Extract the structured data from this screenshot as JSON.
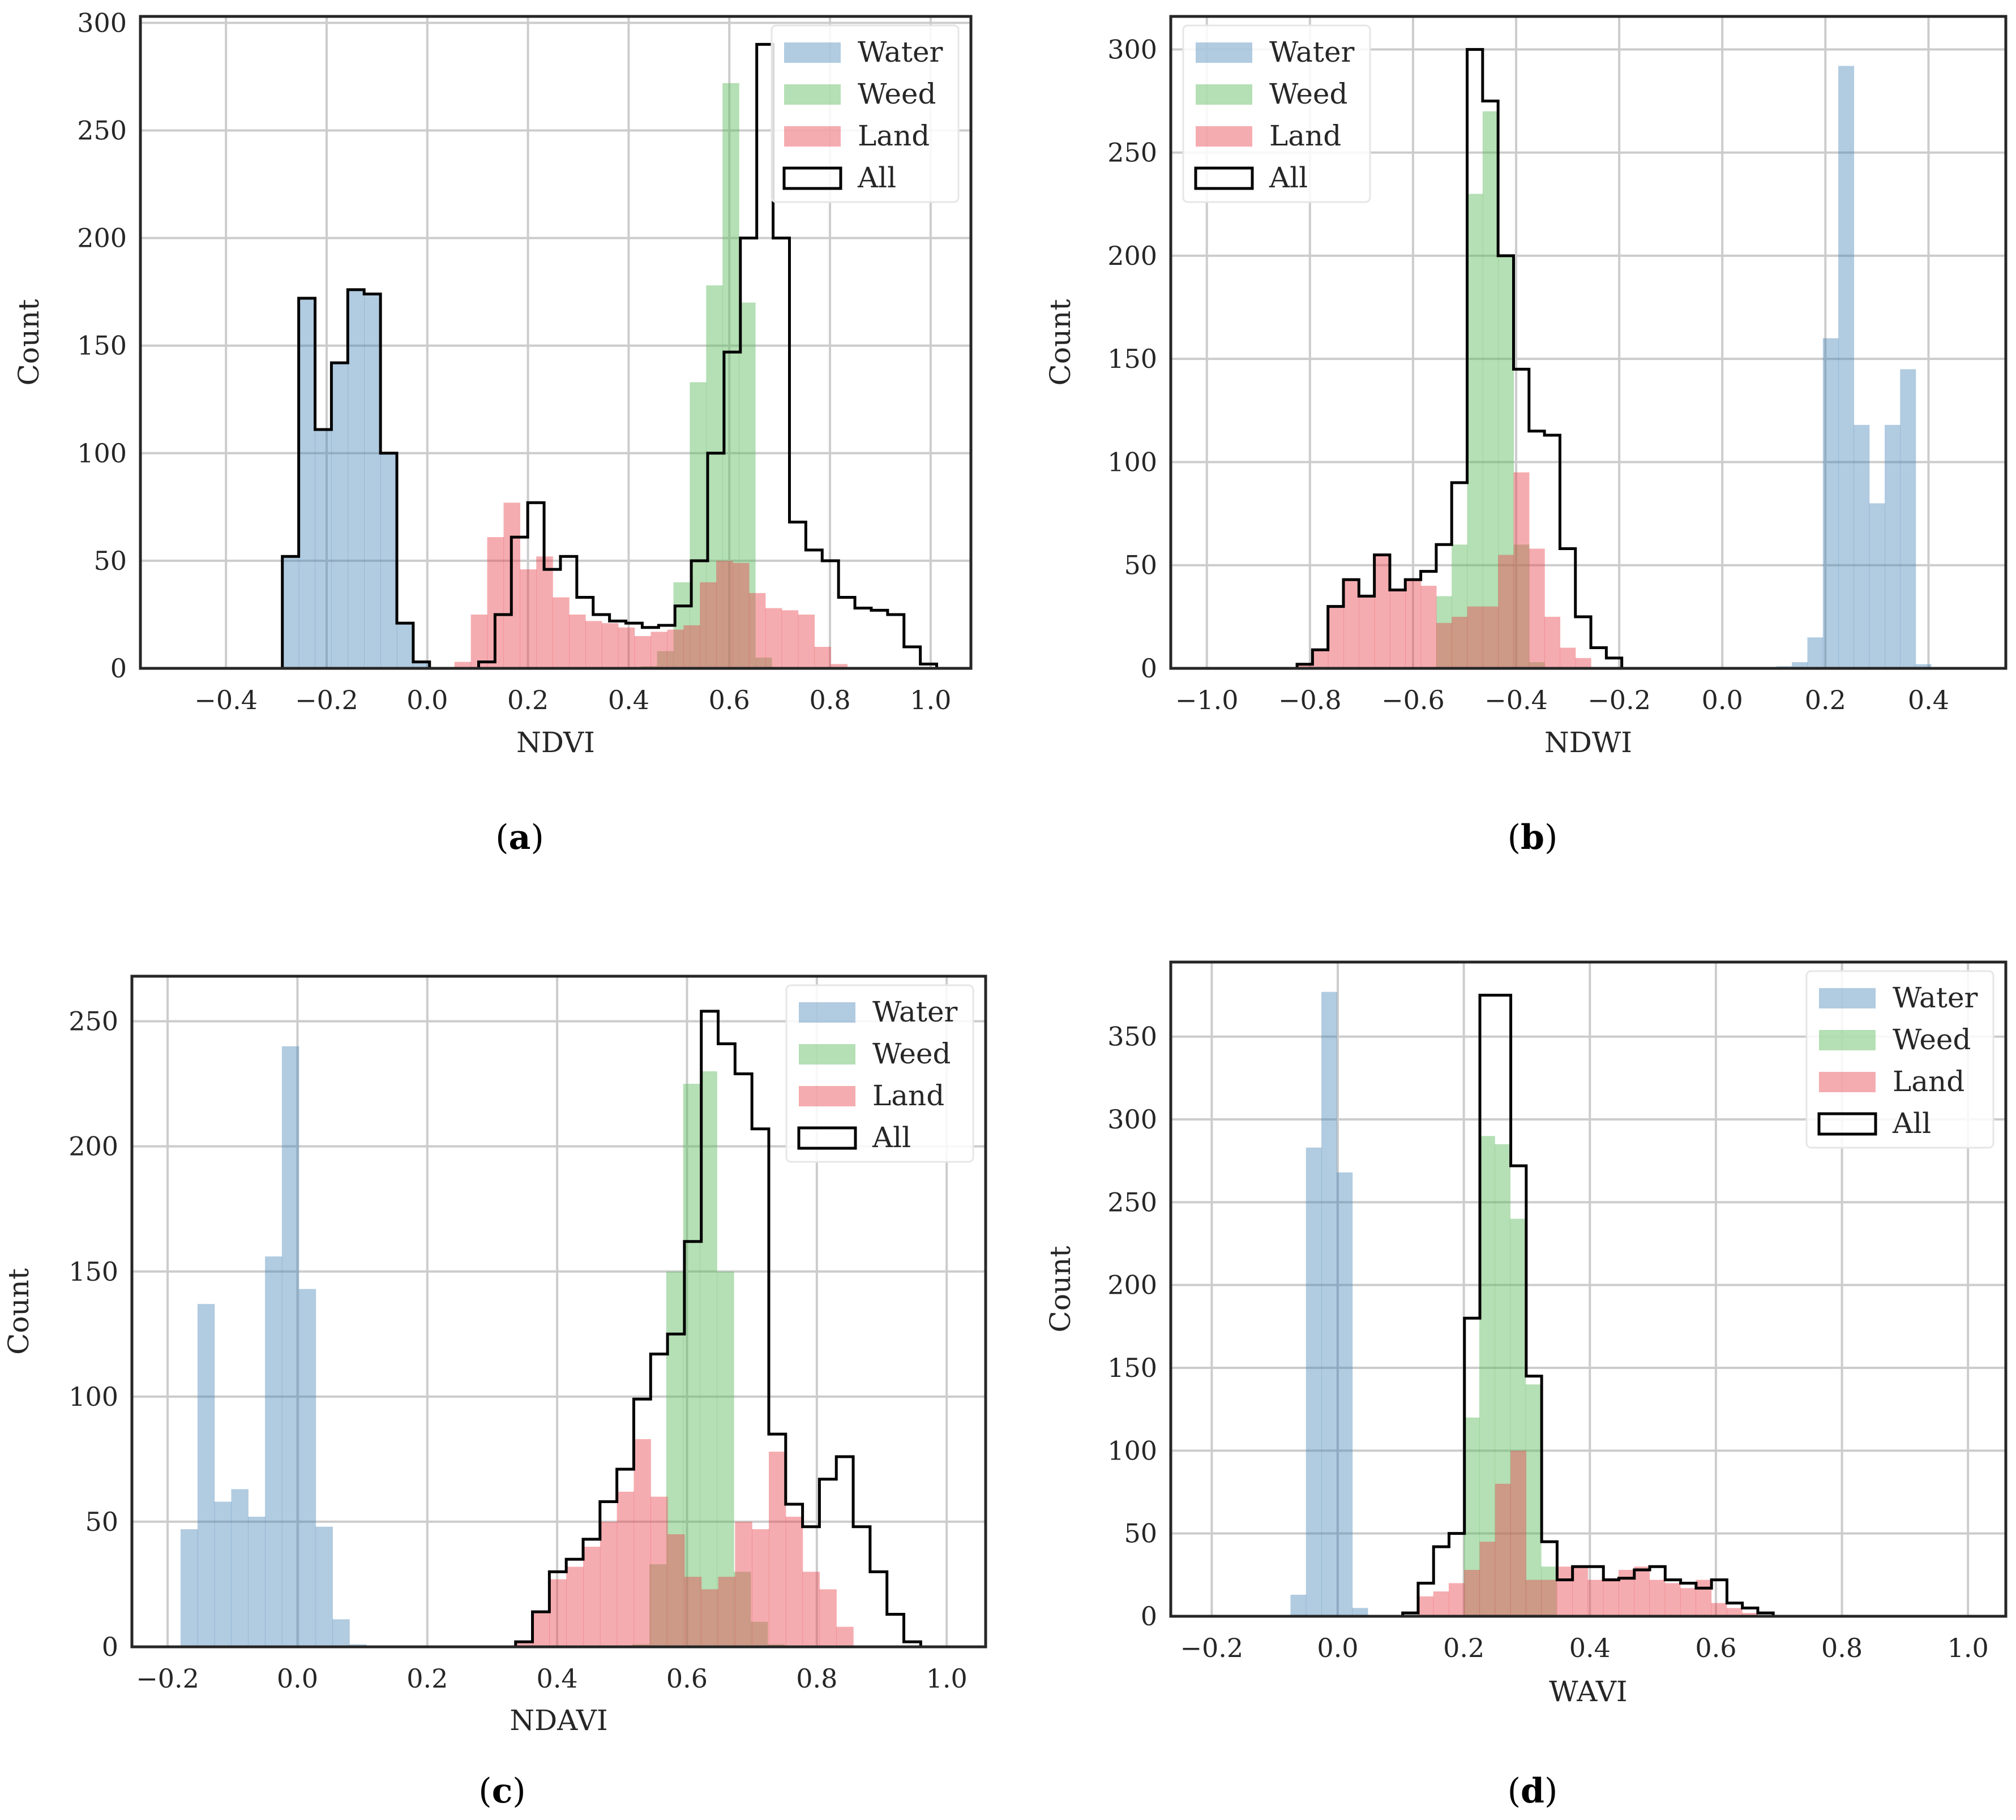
{
  "colors": {
    "water": "#4682b4",
    "weed": "#5cb85c",
    "land": "#e8474f",
    "all": "#000000",
    "grid": "#cccccc",
    "frame": "#262626"
  },
  "chart_data": [
    {
      "type": "histogram",
      "caption": {
        "open": "(",
        "letter": "a",
        "close": ")"
      },
      "xlabel": "NDVI",
      "ylabel": "Count",
      "xlim": [
        -0.57,
        1.08
      ],
      "ylim": [
        0,
        303
      ],
      "xticks": [
        -0.4,
        -0.2,
        0.0,
        0.2,
        0.4,
        0.6,
        0.8,
        1.0
      ],
      "yticks": [
        0,
        50,
        100,
        150,
        200,
        250,
        300
      ],
      "xtick_labels": [
        "−0.4",
        "−0.2",
        "0.0",
        "0.2",
        "0.4",
        "0.6",
        "0.8",
        "1.0"
      ],
      "ytick_labels": [
        "0",
        "50",
        "100",
        "150",
        "200",
        "250",
        "300"
      ],
      "legend": [
        "Water",
        "Weed",
        "Land",
        "All"
      ],
      "legend_position": "top-right",
      "series": [
        {
          "name": "Water",
          "start": -0.288,
          "width": 0.0325,
          "values": [
            52,
            172,
            111,
            142,
            176,
            174,
            100,
            21,
            3
          ]
        },
        {
          "name": "Weed",
          "start": 0.424,
          "width": 0.0325,
          "values": [
            1,
            8,
            40,
            133,
            178,
            272,
            170,
            5
          ]
        },
        {
          "name": "Land",
          "start": 0.054,
          "width": 0.0325,
          "values": [
            3,
            25,
            61,
            77,
            46,
            52,
            33,
            25,
            22,
            21,
            19,
            15,
            17,
            18,
            20,
            40,
            50,
            49,
            35,
            28,
            27,
            25,
            10,
            2
          ]
        },
        {
          "name": "All",
          "start": -0.288,
          "width": 0.0325,
          "values": [
            52,
            172,
            111,
            142,
            176,
            174,
            100,
            21,
            3,
            0,
            0,
            0,
            3,
            25,
            61,
            77,
            46,
            52,
            33,
            25,
            22,
            21,
            19,
            20,
            29,
            50,
            100,
            147,
            200,
            290,
            200,
            68,
            55,
            50,
            33,
            28,
            27,
            25,
            10,
            2
          ]
        }
      ]
    },
    {
      "type": "histogram",
      "caption": {
        "open": "(",
        "letter": "b",
        "close": ")"
      },
      "xlabel": "NDWI",
      "ylabel": "Count",
      "xlim": [
        -1.07,
        0.55
      ],
      "ylim": [
        0,
        316
      ],
      "xticks": [
        -1.0,
        -0.8,
        -0.6,
        -0.4,
        -0.2,
        0.0,
        0.2,
        0.4
      ],
      "yticks": [
        0,
        50,
        100,
        150,
        200,
        250,
        300
      ],
      "xtick_labels": [
        "−1.0",
        "−0.8",
        "−0.6",
        "−0.4",
        "−0.2",
        "0.0",
        "0.2",
        "0.4"
      ],
      "ytick_labels": [
        "0",
        "50",
        "100",
        "150",
        "200",
        "250",
        "300"
      ],
      "legend": [
        "Water",
        "Weed",
        "Land",
        "All"
      ],
      "legend_position": "top-left",
      "series": [
        {
          "name": "Water",
          "start": 0.105,
          "width": 0.03,
          "values": [
            1,
            3,
            15,
            160,
            292,
            118,
            80,
            118,
            145,
            2
          ]
        },
        {
          "name": "Weed",
          "start": -0.555,
          "width": 0.03,
          "values": [
            35,
            60,
            230,
            270,
            200,
            60,
            3
          ]
        },
        {
          "name": "Land",
          "start": -0.825,
          "width": 0.03,
          "values": [
            2,
            9,
            30,
            43,
            35,
            55,
            38,
            43,
            40,
            22,
            25,
            30,
            30,
            55,
            95,
            58,
            25,
            10,
            5
          ]
        },
        {
          "name": "All",
          "start": -0.825,
          "width": 0.03,
          "values": [
            2,
            9,
            30,
            43,
            35,
            55,
            38,
            43,
            47,
            60,
            90,
            300,
            275,
            200,
            145,
            115,
            113,
            58,
            25,
            10,
            5
          ]
        }
      ]
    },
    {
      "type": "histogram",
      "caption": {
        "open": "(",
        "letter": "c",
        "close": ")"
      },
      "xlabel": "NDAVI",
      "ylabel": "Count",
      "xlim": [
        -0.255,
        1.06
      ],
      "ylim": [
        0,
        268
      ],
      "xticks": [
        -0.2,
        0.0,
        0.2,
        0.4,
        0.6,
        0.8,
        1.0
      ],
      "yticks": [
        0,
        50,
        100,
        150,
        200,
        250
      ],
      "xtick_labels": [
        "−0.2",
        "0.0",
        "0.2",
        "0.4",
        "0.6",
        "0.8",
        "1.0"
      ],
      "ytick_labels": [
        "0",
        "50",
        "100",
        "150",
        "200",
        "250"
      ],
      "legend": [
        "Water",
        "Weed",
        "Land",
        "All"
      ],
      "legend_position": "top-right",
      "series": [
        {
          "name": "Water",
          "start": -0.18,
          "width": 0.026,
          "values": [
            47,
            137,
            58,
            63,
            52,
            156,
            240,
            143,
            48,
            11,
            1
          ]
        },
        {
          "name": "Weed",
          "start": 0.516,
          "width": 0.026,
          "values": [
            1,
            33,
            150,
            225,
            230,
            150,
            30,
            10,
            1
          ]
        },
        {
          "name": "Land",
          "start": 0.336,
          "width": 0.026,
          "values": [
            2,
            14,
            27,
            32,
            40,
            50,
            62,
            83,
            60,
            45,
            28,
            23,
            28,
            50,
            47,
            78,
            52,
            30,
            23,
            8
          ]
        },
        {
          "name": "All",
          "start": 0.336,
          "width": 0.026,
          "values": [
            2,
            14,
            30,
            35,
            43,
            58,
            71,
            99,
            117,
            125,
            162,
            254,
            241,
            229,
            207,
            85,
            57,
            48,
            67,
            76,
            48,
            30,
            13,
            2
          ]
        }
      ]
    },
    {
      "type": "histogram",
      "caption": {
        "open": "(",
        "letter": "d",
        "close": ")"
      },
      "xlabel": "WAVI",
      "ylabel": "Count",
      "xlim": [
        -0.265,
        1.06
      ],
      "ylim": [
        0,
        395
      ],
      "xticks": [
        -0.2,
        0.0,
        0.2,
        0.4,
        0.6,
        0.8,
        1.0
      ],
      "yticks": [
        0,
        50,
        100,
        150,
        200,
        250,
        300,
        350
      ],
      "xtick_labels": [
        "−0.2",
        "0.0",
        "0.2",
        "0.4",
        "0.6",
        "0.8",
        "1.0"
      ],
      "ytick_labels": [
        "0",
        "50",
        "100",
        "150",
        "200",
        "250",
        "300",
        "350"
      ],
      "legend": [
        "Water",
        "Weed",
        "Land",
        "All"
      ],
      "legend_position": "top-right",
      "series": [
        {
          "name": "Water",
          "start": -0.075,
          "width": 0.0245,
          "values": [
            13,
            283,
            377,
            268,
            5
          ]
        },
        {
          "name": "Weed",
          "start": 0.2,
          "width": 0.0245,
          "values": [
            120,
            290,
            285,
            240,
            140,
            30
          ]
        },
        {
          "name": "Land",
          "start": 0.127,
          "width": 0.0245,
          "values": [
            12,
            15,
            20,
            28,
            45,
            80,
            100,
            22,
            22,
            30,
            30,
            22,
            23,
            28,
            30,
            22,
            20,
            17,
            22,
            8,
            5,
            2
          ]
        },
        {
          "name": "All",
          "start": 0.103,
          "width": 0.0245,
          "values": [
            2,
            20,
            42,
            50,
            180,
            375,
            375,
            272,
            145,
            45,
            22,
            30,
            30,
            22,
            23,
            28,
            30,
            22,
            20,
            17,
            22,
            8,
            5,
            2
          ]
        }
      ]
    }
  ]
}
